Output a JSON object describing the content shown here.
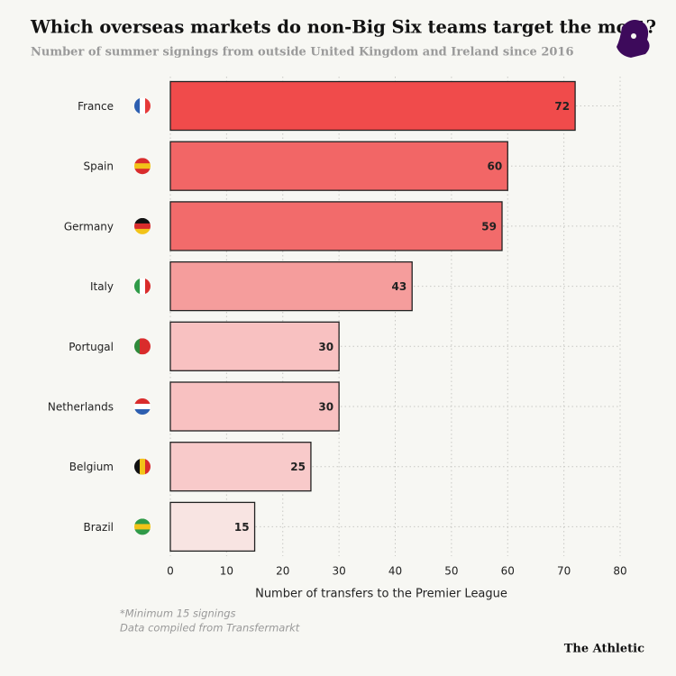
{
  "chart_data": {
    "type": "bar",
    "orientation": "horizontal",
    "title": "Which overseas markets do non-Big Six teams target the most?",
    "subtitle": "Number of summer signings from outside United Kingdom and Ireland since 2016",
    "x_label": "Number of transfers to the Premier League",
    "notes": [
      "*Minimum 15 signings",
      "Data compiled from Transfermarkt"
    ],
    "brand": "The Athletic",
    "categories": [
      "France",
      "Spain",
      "Germany",
      "Italy",
      "Portugal",
      "Netherlands",
      "Belgium",
      "Brazil"
    ],
    "values": [
      72,
      60,
      59,
      43,
      30,
      30,
      25,
      15
    ],
    "colors": [
      "#f04b4b",
      "#f26666",
      "#f26b6b",
      "#f59d9c",
      "#f8c1c1",
      "#f8c1c1",
      "#f8caca",
      "#f8e4e2"
    ],
    "xlim": [
      0,
      80
    ],
    "xticks": [
      0,
      10,
      20,
      30,
      40,
      50,
      60,
      70,
      80
    ],
    "grid": true
  }
}
